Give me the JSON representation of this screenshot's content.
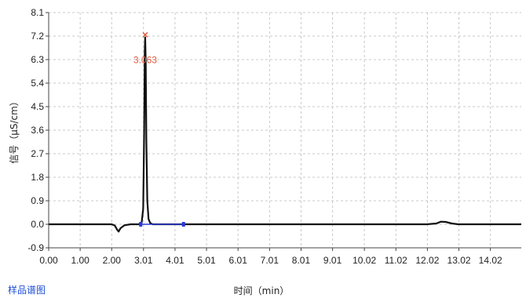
{
  "footer": {
    "tab_label": "样品谱图"
  },
  "chart_data": {
    "type": "line",
    "title": "",
    "xlabel": "时间（min）",
    "ylabel": "信号（μS/cm）",
    "xlim": [
      0,
      15
    ],
    "ylim": [
      -0.9,
      8.1
    ],
    "x_ticks": [
      {
        "value": 0.0,
        "label": "0.00"
      },
      {
        "value": 1.0,
        "label": "1.00"
      },
      {
        "value": 2.0,
        "label": "2.00"
      },
      {
        "value": 3.01,
        "label": "3.01"
      },
      {
        "value": 4.01,
        "label": "4.01"
      },
      {
        "value": 5.01,
        "label": "5.01"
      },
      {
        "value": 6.01,
        "label": "6.01"
      },
      {
        "value": 7.01,
        "label": "7.01"
      },
      {
        "value": 8.01,
        "label": "8.01"
      },
      {
        "value": 9.01,
        "label": "9.01"
      },
      {
        "value": 10.02,
        "label": "10.02"
      },
      {
        "value": 11.02,
        "label": "11.02"
      },
      {
        "value": 12.02,
        "label": "12.02"
      },
      {
        "value": 13.02,
        "label": "13.02"
      },
      {
        "value": 14.02,
        "label": "14.02"
      }
    ],
    "y_ticks": [
      {
        "value": 8.1,
        "label": "8.1"
      },
      {
        "value": 7.2,
        "label": "7.2"
      },
      {
        "value": 6.3,
        "label": "6.3"
      },
      {
        "value": 5.4,
        "label": "5.4"
      },
      {
        "value": 4.5,
        "label": "4.5"
      },
      {
        "value": 3.6,
        "label": "3.6"
      },
      {
        "value": 2.7,
        "label": "2.7"
      },
      {
        "value": 1.8,
        "label": "1.8"
      },
      {
        "value": 0.9,
        "label": "0.9"
      },
      {
        "value": 0.0,
        "label": "0.0"
      },
      {
        "value": -0.9,
        "label": "-0.9"
      }
    ],
    "grid": true,
    "series": [
      {
        "color": "#111111",
        "x": [
          0.0,
          1.5,
          2.0,
          2.1,
          2.18,
          2.22,
          2.28,
          2.4,
          2.6,
          2.85,
          2.95,
          3.0,
          3.03,
          3.05,
          3.063,
          3.08,
          3.1,
          3.13,
          3.17,
          3.22,
          3.3,
          3.5,
          4.0,
          6.0,
          9.0,
          12.0,
          12.3,
          12.45,
          12.6,
          12.8,
          13.0,
          15.0
        ],
        "y": [
          0.0,
          0.0,
          0.0,
          -0.05,
          -0.22,
          -0.28,
          -0.15,
          -0.04,
          0.0,
          0.0,
          0.05,
          0.6,
          3.5,
          6.6,
          7.15,
          6.2,
          3.2,
          0.9,
          0.2,
          0.05,
          0.0,
          0.0,
          0.0,
          0.0,
          0.0,
          0.0,
          0.03,
          0.1,
          0.09,
          0.03,
          0.0,
          0.0
        ]
      }
    ],
    "baseline": {
      "color": "#2b3bd6",
      "x_start": 2.92,
      "x_end": 4.28,
      "y": 0.0,
      "markers": [
        2.92,
        4.28
      ]
    },
    "peaks": [
      {
        "x": 3.063,
        "y": 7.25,
        "label": "3.063",
        "marker_color": "#e0573a"
      }
    ]
  }
}
